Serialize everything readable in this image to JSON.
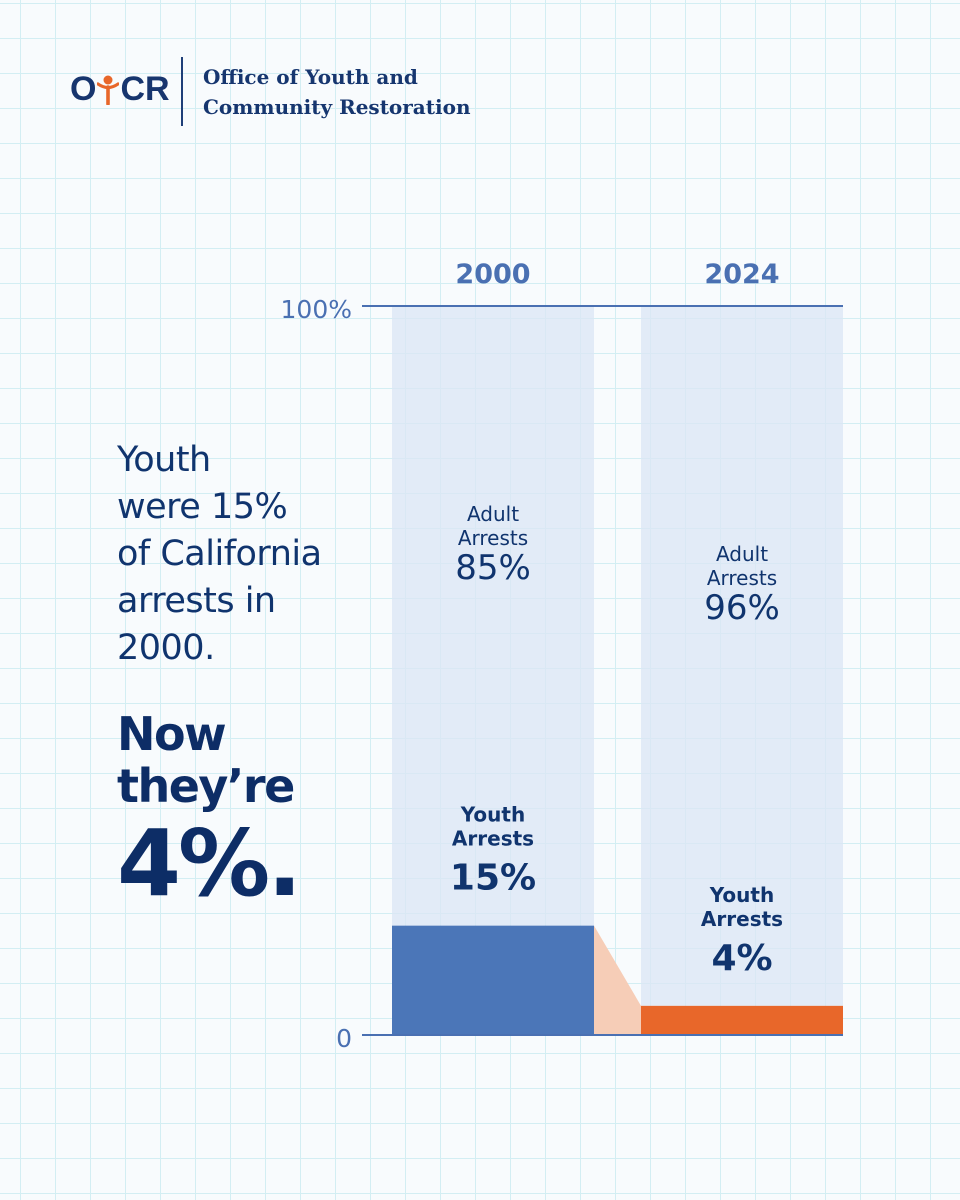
{
  "header": {
    "logo_text": "OYCR",
    "agency_line1": "Office of Youth and",
    "agency_line2": "Community Restoration"
  },
  "headline": {
    "line1": "Youth",
    "line2": "were 15%",
    "line3": "of California",
    "line4": "arrests in",
    "line5": "2000."
  },
  "emphasis": {
    "line1": "Now",
    "line2": "they’re",
    "big": "4%."
  },
  "colors": {
    "navy": "#10346e",
    "axis_blue": "#4a70b2",
    "youth_2000": "#4b76b8",
    "youth_2024": "#e8672a",
    "connector": "#f6cdb7",
    "adult_bg": "#dbe6f4"
  },
  "chart_data": {
    "type": "bar",
    "stacked": true,
    "categories": [
      "2000",
      "2024"
    ],
    "y_tick_labels": [
      "100%",
      "0"
    ],
    "ylim": [
      0,
      100
    ],
    "series": [
      {
        "name": "Youth Arrests",
        "label_line1": "Youth",
        "label_line2": "Arrests",
        "values": [
          15,
          4
        ],
        "value_labels": [
          "15%",
          "4%"
        ]
      },
      {
        "name": "Adult Arrests",
        "label_line1": "Adult",
        "label_line2": "Arrests",
        "values": [
          85,
          96
        ],
        "value_labels": [
          "85%",
          "96%"
        ]
      }
    ]
  }
}
